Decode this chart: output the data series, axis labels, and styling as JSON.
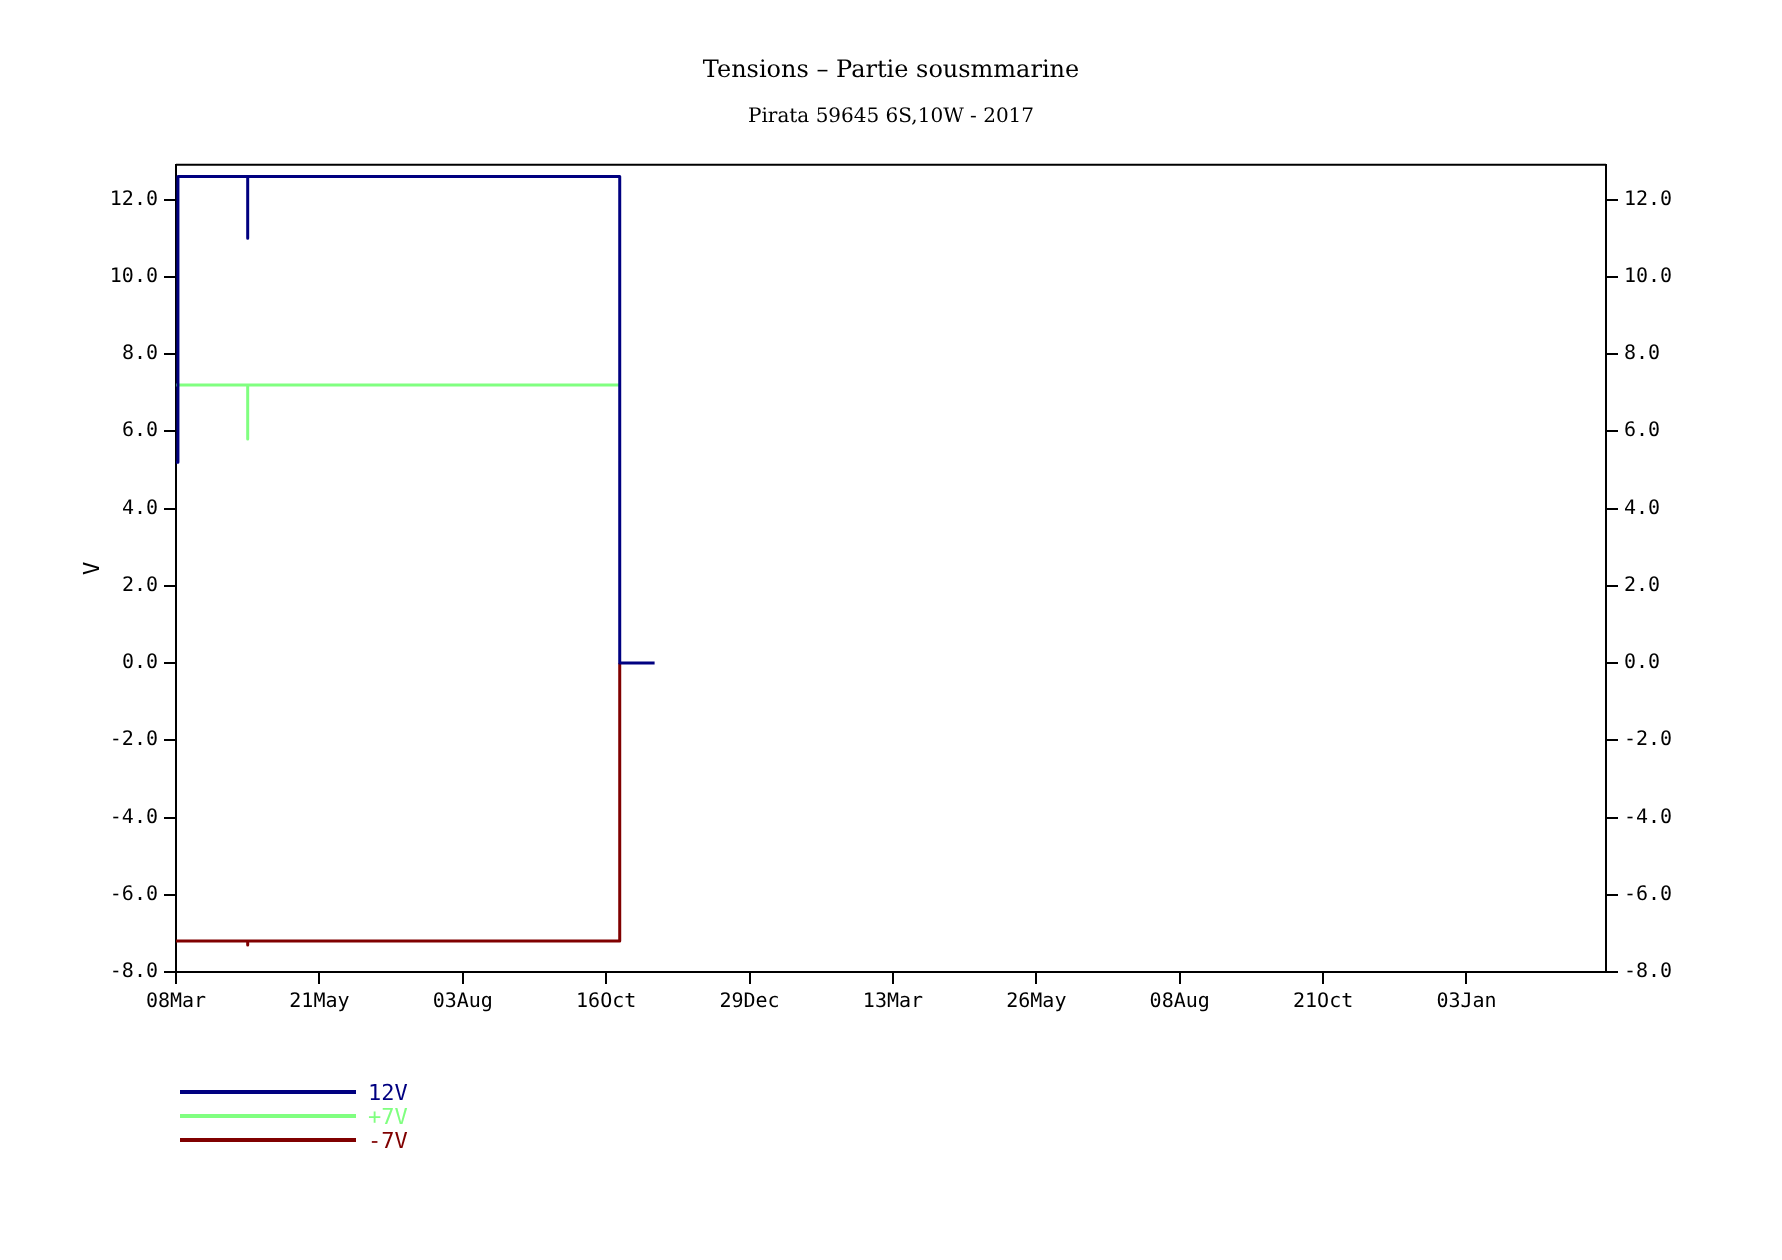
{
  "chart_data": {
    "type": "line",
    "title": "Tensions – Partie sousmmarine",
    "subtitle": "Pirata 59645 6S,10W - 2017",
    "ylabel": "V",
    "xlim": [
      "2017-03-08",
      "2019-03-16"
    ],
    "xticks": [
      {
        "value": "2017-03-08",
        "label": "08Mar"
      },
      {
        "value": "2017-05-21",
        "label": "21May"
      },
      {
        "value": "2017-08-03",
        "label": "03Aug"
      },
      {
        "value": "2017-10-16",
        "label": "16Oct"
      },
      {
        "value": "2017-12-29",
        "label": "29Dec"
      },
      {
        "value": "2018-03-13",
        "label": "13Mar"
      },
      {
        "value": "2018-05-26",
        "label": "26May"
      },
      {
        "value": "2018-08-08",
        "label": "08Aug"
      },
      {
        "value": "2018-10-21",
        "label": "21Oct"
      },
      {
        "value": "2019-01-03",
        "label": "03Jan"
      }
    ],
    "ylim": [
      -8,
      12.9
    ],
    "yticks": [
      {
        "value": -8,
        "label": "-8.0"
      },
      {
        "value": -6,
        "label": "-6.0"
      },
      {
        "value": -4,
        "label": "-4.0"
      },
      {
        "value": -2,
        "label": "-2.0"
      },
      {
        "value": 0,
        "label": "0.0"
      },
      {
        "value": 2,
        "label": "2.0"
      },
      {
        "value": 4,
        "label": "4.0"
      },
      {
        "value": 6,
        "label": "6.0"
      },
      {
        "value": 8,
        "label": "8.0"
      },
      {
        "value": 10,
        "label": "10.0"
      },
      {
        "value": 12,
        "label": "12.0"
      }
    ],
    "y2lim": [
      -8,
      12.9
    ],
    "y2ticks": [
      {
        "value": -8,
        "label": "-8.0"
      },
      {
        "value": -6,
        "label": "-6.0"
      },
      {
        "value": -4,
        "label": "-4.0"
      },
      {
        "value": -2,
        "label": "-2.0"
      },
      {
        "value": 0,
        "label": "0.0"
      },
      {
        "value": 2,
        "label": "2.0"
      },
      {
        "value": 4,
        "label": "4.0"
      },
      {
        "value": 6,
        "label": "6.0"
      },
      {
        "value": 8,
        "label": "8.0"
      },
      {
        "value": 10,
        "label": "10.0"
      },
      {
        "value": 12,
        "label": "12.0"
      }
    ],
    "grid": false,
    "legend": "bottom left",
    "marker": "none",
    "line_style": "solid",
    "series": [
      {
        "name": "12V",
        "color": "#000080",
        "x": [
          "2017-03-08",
          "2017-03-09",
          "2017-04-14",
          "2017-04-14",
          "2017-04-14",
          "2017-10-23",
          "2017-10-23",
          "2017-11-10"
        ],
        "values": [
          5.2,
          12.6,
          12.6,
          11.0,
          12.6,
          12.6,
          0,
          0
        ]
      },
      {
        "name": "+7V",
        "color": "#80ff80",
        "x": [
          "2017-03-08",
          "2017-04-14",
          "2017-04-14",
          "2017-04-14",
          "2017-10-23"
        ],
        "values": [
          7.2,
          7.2,
          5.8,
          7.2,
          7.2
        ]
      },
      {
        "name": "-7V",
        "color": "#800000",
        "x": [
          "2017-03-08",
          "2017-04-14",
          "2017-04-14",
          "2017-04-14",
          "2017-10-23",
          "2017-10-23"
        ],
        "values": [
          -7.2,
          -7.2,
          -7.3,
          -7.2,
          -7.2,
          0
        ]
      }
    ]
  }
}
